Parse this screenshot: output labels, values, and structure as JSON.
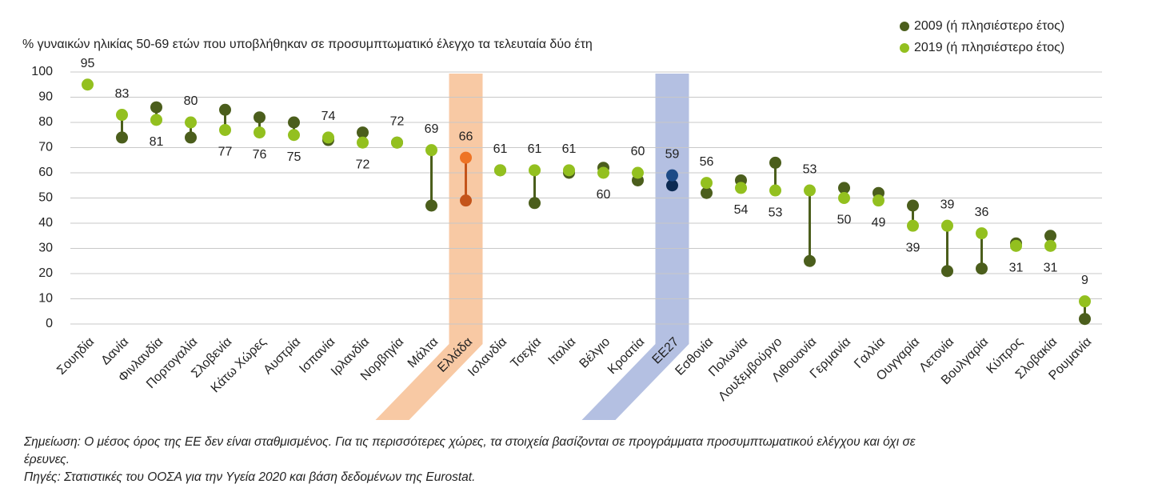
{
  "chart_data": {
    "type": "dumbbell",
    "y_label": "% γυναικών ηλικίας 50-69 ετών που υποβλήθηκαν σε προσυμπτωματικό έλεγχο τα τελευταία δύο έτη",
    "categories": [
      "Σουηδία",
      "Δανία",
      "Φινλανδία",
      "Πορτογαλία",
      "Σλοβενία",
      "Κάτω Χώρες",
      "Αυστρία",
      "Ισπανία",
      "Ιρλανδία",
      "Νορβηγία",
      "Μάλτα",
      "Ελλάδα",
      "Ισλανδία",
      "Τσεχία",
      "Ιταλία",
      "Βέλγιο",
      "Κροατία",
      "ΕΕ27",
      "Εσθονία",
      "Πολωνία",
      "Λουξεμβούργο",
      "Λιθουανία",
      "Γερμανία",
      "Γαλλία",
      "Ουγγαρία",
      "Λετονία",
      "Βουλγαρία",
      "Κύπρος",
      "Σλοβακία",
      "Ρουμανία"
    ],
    "series": [
      {
        "name": "2009 (ή πλησιέστερο έτος)",
        "color": "#4b5e1c",
        "values": [
          null,
          74,
          86,
          74,
          85,
          82,
          80,
          73,
          76,
          72,
          47,
          49,
          61,
          48,
          60,
          62,
          57,
          55,
          52,
          57,
          64,
          25,
          54,
          52,
          47,
          21,
          22,
          32,
          35,
          2
        ]
      },
      {
        "name": "2019 (ή πλησιέστερο έτος)",
        "color": "#93c01f",
        "labeled": true,
        "values": [
          95,
          83,
          81,
          80,
          77,
          76,
          75,
          74,
          72,
          72,
          69,
          66,
          61,
          61,
          61,
          60,
          60,
          59,
          56,
          54,
          53,
          53,
          50,
          49,
          39,
          39,
          36,
          31,
          31,
          9
        ]
      }
    ],
    "highlights": [
      {
        "category": "Ελλάδα",
        "band_color": "#f8c9a4",
        "colors": [
          "#c4541a",
          "#ee7425"
        ]
      },
      {
        "category": "ΕΕ27",
        "band_color": "#b4c0e2",
        "colors": [
          "#0c2a52",
          "#1d4b86"
        ]
      }
    ],
    "ylim": [
      0,
      100
    ],
    "yticks": [
      0,
      10,
      20,
      30,
      40,
      50,
      60,
      70,
      80,
      90,
      100
    ],
    "grid": true,
    "legend": "top-right",
    "notes": [
      "Σημείωση: Ο μέσος όρος της ΕΕ δεν είναι σταθμισμένος. Για τις περισσότερες χώρες, τα στοιχεία βασίζονται σε προγράμματα προσυμπτωματικού ελέγχου και όχι σε έρευνες.",
      "Πηγές: Στατιστικές του ΟΟΣΑ για την Υγεία 2020 και βάση δεδομένων της Eurostat."
    ]
  }
}
